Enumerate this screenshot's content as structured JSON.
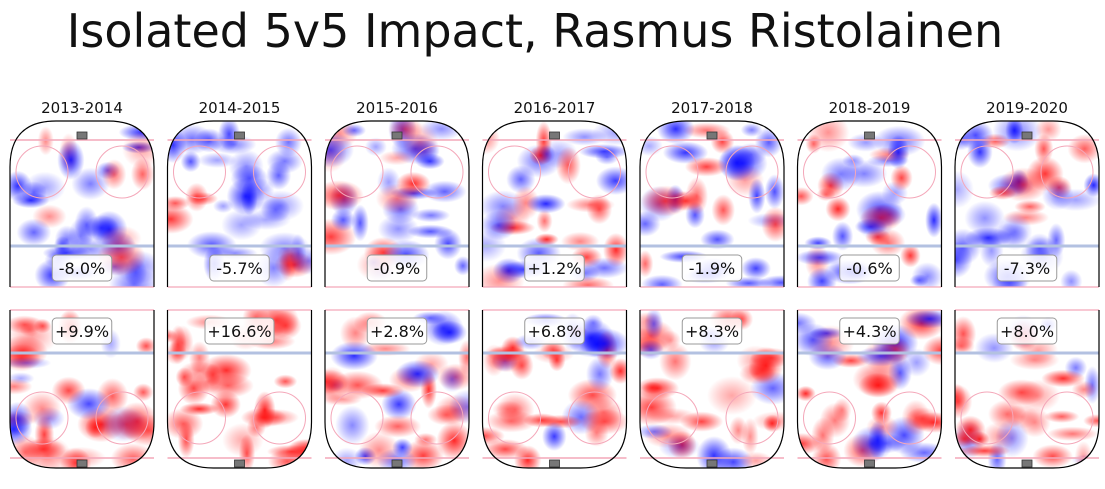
{
  "figure": {
    "title": "Isolated 5v5 Impact, Rasmus Ristolainen"
  },
  "colors": {
    "positive": "#ff0000",
    "negative": "#0000ff",
    "rink_line": "#000000",
    "blue_line": "#b3c1e1",
    "red_line": "#f4a7b9",
    "label_border": "#999999"
  },
  "chart_data": {
    "type": "heatmap",
    "panels": [
      {
        "season": "2013-2014",
        "offense": "-8.0%",
        "defense": "+9.9%",
        "offense_value": -8.0,
        "defense_value": 9.9
      },
      {
        "season": "2014-2015",
        "offense": "-5.7%",
        "defense": "+16.6%",
        "offense_value": -5.7,
        "defense_value": 16.6
      },
      {
        "season": "2015-2016",
        "offense": "-0.9%",
        "defense": "+2.8%",
        "offense_value": -0.9,
        "defense_value": 2.8
      },
      {
        "season": "2016-2017",
        "offense": "+1.2%",
        "defense": "+6.8%",
        "offense_value": 1.2,
        "defense_value": 6.8
      },
      {
        "season": "2017-2018",
        "offense": "-1.9%",
        "defense": "+8.3%",
        "offense_value": -1.9,
        "defense_value": 8.3
      },
      {
        "season": "2018-2019",
        "offense": "-0.6%",
        "defense": "+4.3%",
        "offense_value": -0.6,
        "defense_value": 4.3
      },
      {
        "season": "2019-2020",
        "offense": "-7.3%",
        "defense": "+8.0%",
        "offense_value": -7.3,
        "defense_value": 8.0
      }
    ]
  }
}
